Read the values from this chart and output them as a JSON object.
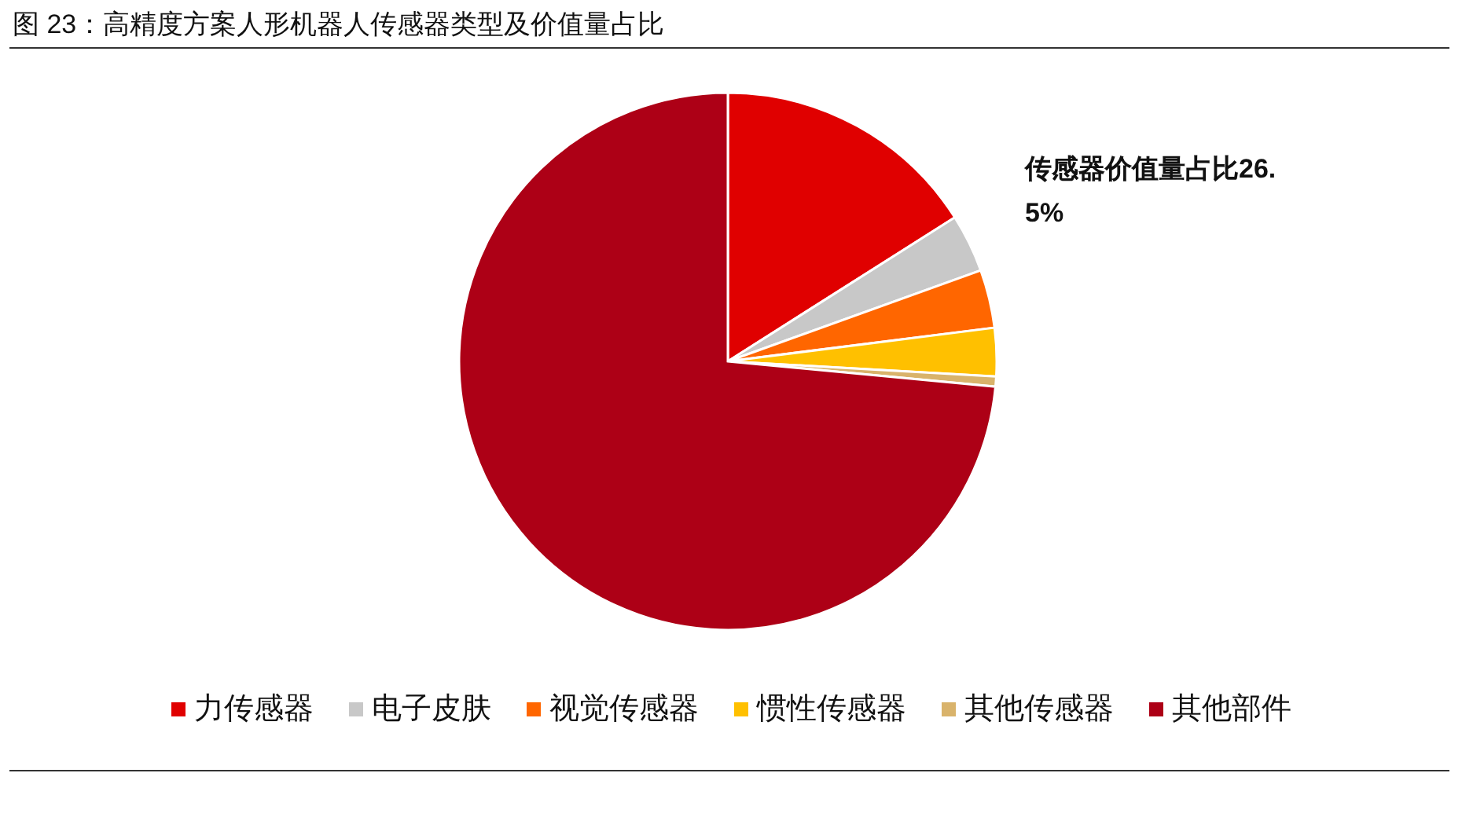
{
  "chart_data": {
    "type": "pie",
    "title": "图 23：高精度方案人形机器人传感器类型及价值量占比",
    "categories": [
      "力传感器",
      "电子皮肤",
      "视觉传感器",
      "惯性传感器",
      "其他传感器",
      "其他部件"
    ],
    "values": [
      16.0,
      3.5,
      3.5,
      2.9,
      0.6,
      73.5
    ],
    "colors": [
      "#e00000",
      "#c8c8c8",
      "#ff6600",
      "#ffc000",
      "#d9b36b",
      "#ad0016"
    ],
    "legend": "bottom",
    "annotations": [
      "传感器价值量占比26.5%"
    ]
  }
}
